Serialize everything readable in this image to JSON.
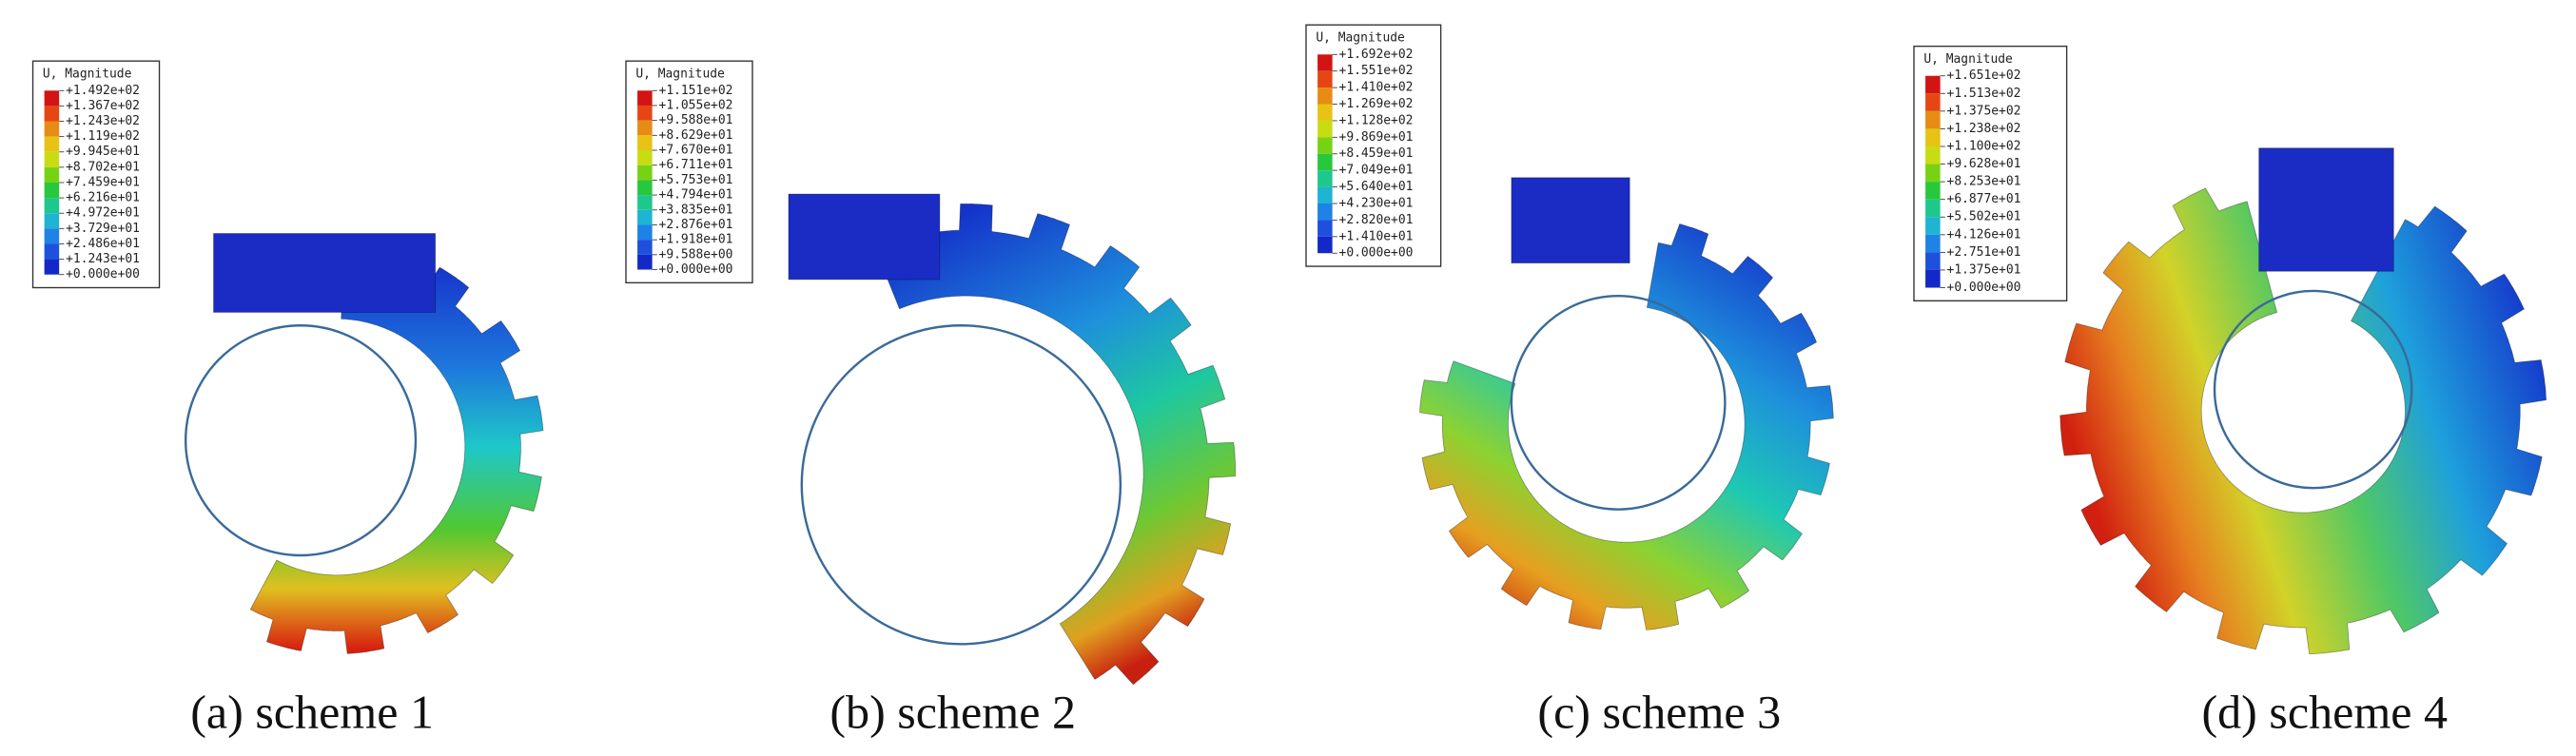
{
  "panels": [
    {
      "legend_title": "U, Magnitude",
      "legend_labels": [
        "+1.492e+02",
        "+1.367e+02",
        "+1.243e+02",
        "+1.119e+02",
        "+9.945e+01",
        "+8.702e+01",
        "+7.459e+01",
        "+6.216e+01",
        "+4.972e+01",
        "+3.729e+01",
        "+2.486e+01",
        "+1.243e+01",
        "+0.000e+00"
      ],
      "caption": "(a) scheme 1"
    },
    {
      "legend_title": "U, Magnitude",
      "legend_labels": [
        "+1.151e+02",
        "+1.055e+02",
        "+9.588e+01",
        "+8.629e+01",
        "+7.670e+01",
        "+6.711e+01",
        "+5.753e+01",
        "+4.794e+01",
        "+3.835e+01",
        "+2.876e+01",
        "+1.918e+01",
        "+9.588e+00",
        "+0.000e+00"
      ],
      "caption": "(b) scheme 2"
    },
    {
      "legend_title": "U, Magnitude",
      "legend_labels": [
        "+1.692e+02",
        "+1.551e+02",
        "+1.410e+02",
        "+1.269e+02",
        "+1.128e+02",
        "+9.869e+01",
        "+8.459e+01",
        "+7.049e+01",
        "+5.640e+01",
        "+4.230e+01",
        "+2.820e+01",
        "+1.410e+01",
        "+0.000e+00"
      ],
      "caption": "(c) scheme 3"
    },
    {
      "legend_title": "U, Magnitude",
      "legend_labels": [
        "+1.651e+02",
        "+1.513e+02",
        "+1.375e+02",
        "+1.238e+02",
        "+1.100e+02",
        "+9.628e+01",
        "+8.253e+01",
        "+6.877e+01",
        "+5.502e+01",
        "+4.126e+01",
        "+2.751e+01",
        "+1.375e+01",
        "+0.000e+00"
      ],
      "caption": "(d) scheme 4"
    }
  ]
}
